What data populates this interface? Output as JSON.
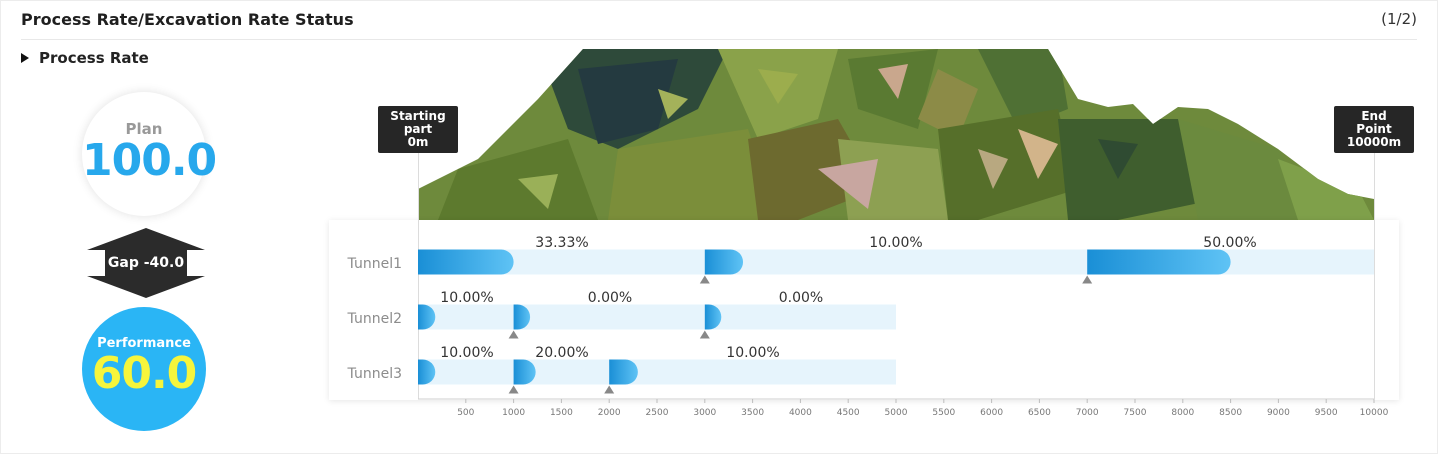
{
  "header": {
    "title": "Process Rate/Excavation Rate Status",
    "pager": "(1/2)"
  },
  "section": {
    "label": "Process Rate"
  },
  "summary": {
    "plan_label": "Plan",
    "plan_value": "100.0",
    "gap_label": "Gap -40.0",
    "performance_label": "Performance",
    "performance_value": "60.0"
  },
  "markers": {
    "start_lines": [
      "Starting",
      "part",
      "0m"
    ],
    "end_lines": [
      "End",
      "Point",
      "10000m"
    ]
  },
  "colors": {
    "bar_track": "#e6f4fc",
    "bar_start": "#1a8fd6",
    "bar_end": "#5fc3f5",
    "marker": "#888888"
  },
  "chart_data": {
    "type": "bar",
    "x_range": [
      0,
      10000
    ],
    "x_ticks": [
      500,
      1000,
      1500,
      2000,
      2500,
      3000,
      3500,
      4000,
      4500,
      5000,
      5500,
      6000,
      6500,
      7000,
      7500,
      8000,
      8500,
      9000,
      9500,
      10000
    ],
    "tunnels": [
      {
        "name": "Tunnel1",
        "length": 10000,
        "sections": [
          {
            "start": 0,
            "end": 1000,
            "label": "33.33%"
          },
          {
            "start": 3000,
            "end": 3400,
            "label": "10.00%"
          },
          {
            "start": 7000,
            "end": 8500,
            "label": "50.00%"
          }
        ],
        "markers": [
          3000,
          7000
        ]
      },
      {
        "name": "Tunnel2",
        "length": 5000,
        "sections": [
          {
            "start": 0,
            "end": 100,
            "label": "10.00%"
          },
          {
            "start": 1000,
            "end": 1000,
            "label": "0.00%"
          },
          {
            "start": 3000,
            "end": 3000,
            "label": "0.00%"
          }
        ],
        "markers": [
          1000,
          3000
        ]
      },
      {
        "name": "Tunnel3",
        "length": 5000,
        "sections": [
          {
            "start": 0,
            "end": 100,
            "label": "10.00%"
          },
          {
            "start": 1000,
            "end": 1200,
            "label": "20.00%"
          },
          {
            "start": 2000,
            "end": 2300,
            "label": "10.00%"
          }
        ],
        "markers": [
          1000,
          2000
        ]
      }
    ]
  }
}
